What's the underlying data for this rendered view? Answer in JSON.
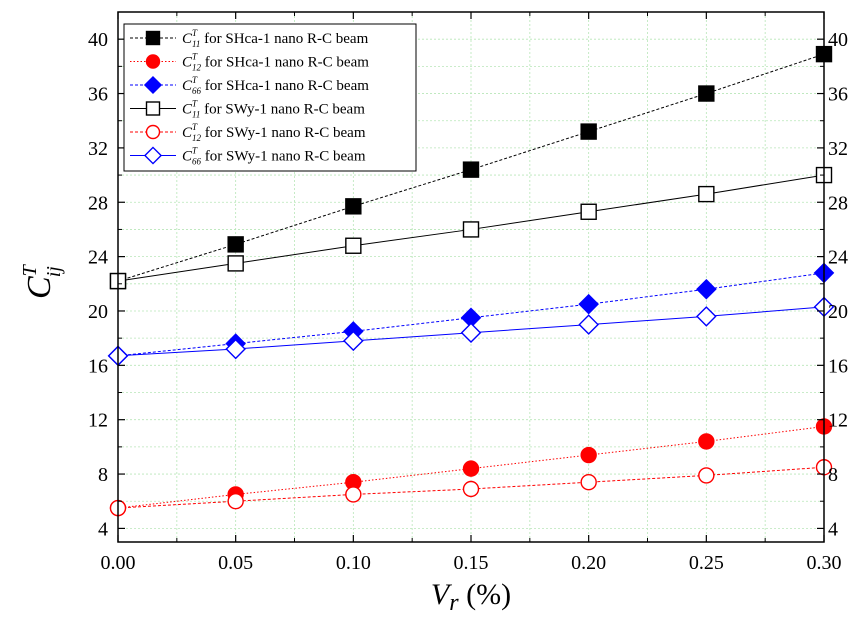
{
  "chart_data": {
    "type": "line",
    "xlabel": "V_r (%)",
    "xlabel_main": "V",
    "xlabel_sub": "r",
    "xlabel_unit": " (%)",
    "ylabel": "C^T_ij",
    "ylabel_main": "C",
    "ylabel_sup": "T",
    "ylabel_sub": "ij",
    "xlim": [
      0,
      0.3
    ],
    "ylim": [
      3,
      42
    ],
    "x_ticks": [
      0,
      0.05,
      0.1,
      0.15,
      0.2,
      0.25,
      0.3
    ],
    "x_tick_labels": [
      "0.00",
      "0.05",
      "0.10",
      "0.15",
      "0.20",
      "0.25",
      "0.30"
    ],
    "y_ticks": [
      4,
      8,
      12,
      16,
      20,
      24,
      28,
      32,
      36,
      40
    ],
    "y_tick_labels": [
      "4",
      "8",
      "12",
      "16",
      "20",
      "24",
      "28",
      "32",
      "36",
      "40"
    ],
    "grid": true,
    "legend_position": "top-left",
    "x": [
      0,
      0.05,
      0.1,
      0.15,
      0.2,
      0.25,
      0.3
    ],
    "series": [
      {
        "name": "C^T_11 for SHca-1 nano R-C beam",
        "sub": "11",
        "suffix": " for SHca-1 nano R-C beam",
        "color": "#000000",
        "marker": "square",
        "filled": true,
        "dash": "3,2",
        "values": [
          22.2,
          24.9,
          27.7,
          30.4,
          33.2,
          36.0,
          38.9
        ]
      },
      {
        "name": "C^T_12 for SHca-1 nano R-C beam",
        "sub": "12",
        "suffix": " for SHca-1 nano R-C beam",
        "color": "#ff0000",
        "marker": "circle",
        "filled": true,
        "dash": "1.5,2",
        "values": [
          5.5,
          6.5,
          7.4,
          8.4,
          9.4,
          10.4,
          11.5
        ]
      },
      {
        "name": "C^T_66 for SHca-1 nano R-C beam",
        "sub": "66",
        "suffix": " for SHca-1 nano R-C beam",
        "color": "#0000ff",
        "marker": "diamond",
        "filled": true,
        "dash": "3,2",
        "values": [
          16.7,
          17.6,
          18.5,
          19.5,
          20.5,
          21.6,
          22.8
        ]
      },
      {
        "name": "C^T_11 for SWy-1 nano R-C beam",
        "sub": "11",
        "suffix": " for SWy-1 nano R-C beam",
        "color": "#000000",
        "marker": "square",
        "filled": false,
        "dash": "",
        "values": [
          22.2,
          23.5,
          24.8,
          26.0,
          27.3,
          28.6,
          30.0
        ]
      },
      {
        "name": "C^T_12 for SWy-1 nano R-C beam",
        "sub": "12",
        "suffix": " for SWy-1 nano R-C beam",
        "color": "#ff0000",
        "marker": "circle",
        "filled": false,
        "dash": "3,2",
        "values": [
          5.5,
          6.0,
          6.5,
          6.9,
          7.4,
          7.9,
          8.5
        ]
      },
      {
        "name": "C^T_66 for SWy-1 nano R-C beam",
        "sub": "66",
        "suffix": " for SWy-1 nano R-C beam",
        "color": "#0000ff",
        "marker": "diamond",
        "filled": false,
        "dash": "",
        "values": [
          16.7,
          17.2,
          17.8,
          18.4,
          19.0,
          19.6,
          20.3
        ]
      }
    ]
  }
}
